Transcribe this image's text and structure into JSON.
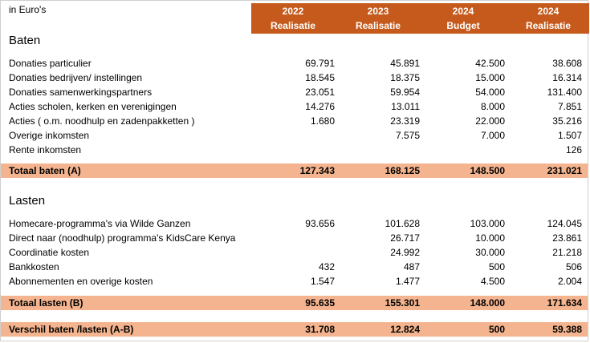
{
  "unit_label": "in Euro's",
  "columns": [
    {
      "year": "2022",
      "type": "Realisatie"
    },
    {
      "year": "2023",
      "type": "Realisatie"
    },
    {
      "year": "2024",
      "type": "Budget"
    },
    {
      "year": "2024",
      "type": "Realisatie"
    }
  ],
  "baten": {
    "title": "Baten",
    "rows": [
      {
        "label": "Donaties particulier",
        "values": [
          "69.791",
          "45.891",
          "42.500",
          "38.608"
        ]
      },
      {
        "label": "Donaties bedrijven/ instellingen",
        "values": [
          "18.545",
          "18.375",
          "15.000",
          "16.314"
        ]
      },
      {
        "label": "Donaties samenwerkingspartners",
        "values": [
          "23.051",
          "59.954",
          "54.000",
          "131.400"
        ]
      },
      {
        "label": "Acties scholen, kerken en verenigingen",
        "values": [
          "14.276",
          "13.011",
          "8.000",
          "7.851"
        ]
      },
      {
        "label": "Acties ( o.m. noodhulp en zadenpakketten )",
        "values": [
          "1.680",
          "23.319",
          "22.000",
          "35.216"
        ]
      },
      {
        "label": "Overige inkomsten",
        "values": [
          "",
          "7.575",
          "7.000",
          "1.507"
        ]
      },
      {
        "label": "Rente inkomsten",
        "values": [
          "",
          "",
          "",
          "126"
        ]
      }
    ],
    "total": {
      "label": "Totaal baten (A)",
      "values": [
        "127.343",
        "168.125",
        "148.500",
        "231.021"
      ]
    }
  },
  "lasten": {
    "title": "Lasten",
    "rows": [
      {
        "label": "Homecare-programma's via Wilde Ganzen",
        "values": [
          "93.656",
          "101.628",
          "103.000",
          "124.045"
        ]
      },
      {
        "label": "Direct naar (noodhulp) programma's KidsCare Kenya",
        "values": [
          "",
          "26.717",
          "10.000",
          "23.861"
        ]
      },
      {
        "label": "Coordinatie kosten",
        "values": [
          "",
          "24.992",
          "30.000",
          "21.218"
        ]
      },
      {
        "label": "Bankkosten",
        "values": [
          "432",
          "487",
          "500",
          "506"
        ]
      },
      {
        "label": "Abonnementen en overige kosten",
        "values": [
          "1.547",
          "1.477",
          "4.500",
          "2.004"
        ]
      }
    ],
    "total": {
      "label": "Totaal lasten (B)",
      "values": [
        "95.635",
        "155.301",
        "148.000",
        "171.634"
      ]
    }
  },
  "verschil": {
    "label": "Verschil baten /lasten  (A-B)",
    "values": [
      "31.708",
      "12.824",
      "500",
      "59.388"
    ]
  }
}
